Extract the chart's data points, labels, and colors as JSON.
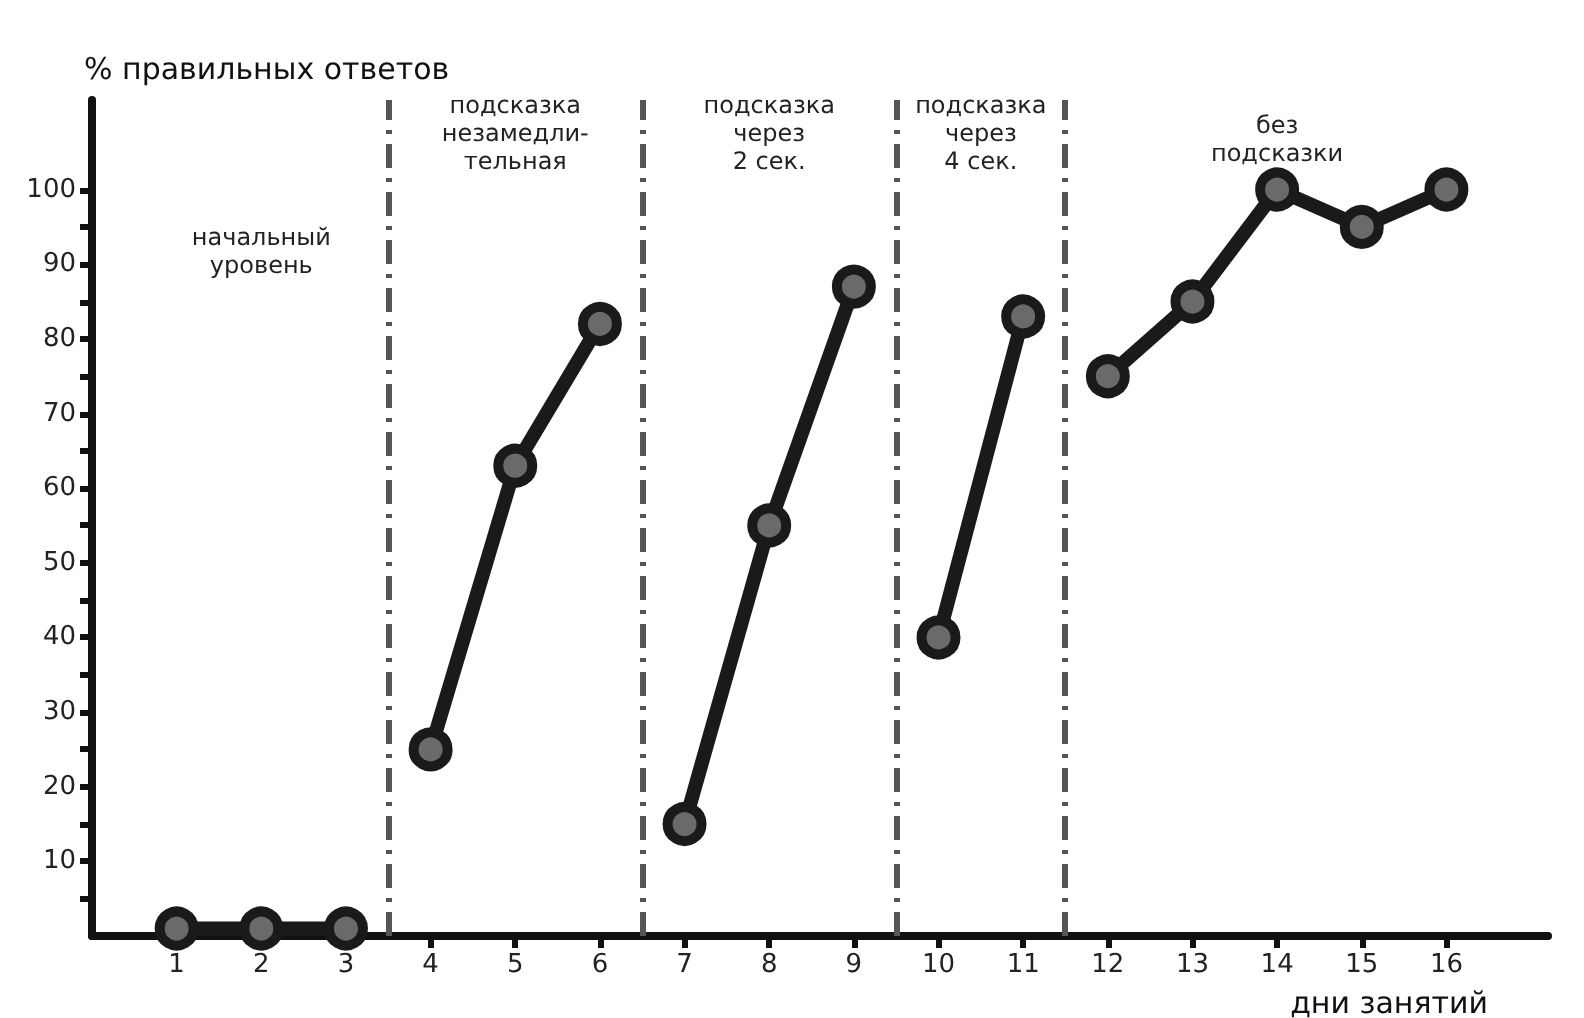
{
  "chart_data": {
    "type": "line",
    "ylabel": "% правильных ответов",
    "xlabel": "дни занятий",
    "xlim": [
      0,
      17.2
    ],
    "xticks": [
      1,
      2,
      3,
      4,
      5,
      6,
      7,
      8,
      9,
      10,
      11,
      12,
      13,
      14,
      15,
      16
    ],
    "ylim": [
      0,
      112
    ],
    "yticks": [
      {
        "value": 5,
        "label": null
      },
      10,
      {
        "value": 15,
        "label": null
      },
      20,
      {
        "value": 25,
        "label": null
      },
      30,
      {
        "value": 35,
        "label": null
      },
      40,
      {
        "value": 45,
        "label": null
      },
      50,
      {
        "value": 55,
        "label": null
      },
      60,
      {
        "value": 65,
        "label": null
      },
      70,
      {
        "value": 75,
        "label": null
      },
      80,
      {
        "value": 85,
        "label": null
      },
      90,
      {
        "value": 95,
        "label": null
      },
      100
    ],
    "series": [
      {
        "color": "#1a1a1a",
        "x": [
          1,
          2,
          3
        ],
        "values": [
          1,
          1,
          1
        ]
      },
      {
        "color": "#1a1a1a",
        "x": [
          4,
          5,
          6
        ],
        "values": [
          25,
          63,
          82
        ]
      },
      {
        "color": "#1a1a1a",
        "x": [
          7,
          8,
          9
        ],
        "values": [
          15,
          55,
          87
        ]
      },
      {
        "color": "#1a1a1a",
        "x": [
          10,
          11
        ],
        "values": [
          40,
          83
        ]
      },
      {
        "color": "#1a1a1a",
        "x": [
          12,
          13,
          14,
          15,
          16
        ],
        "values": [
          75,
          85,
          100,
          95,
          100
        ]
      }
    ],
    "marker": "circle",
    "line_style": "solid",
    "grid": false,
    "ref_lines": [
      {
        "axis": "x",
        "value": 3.5,
        "color": "#555555",
        "line_style": "dashed"
      },
      {
        "axis": "x",
        "value": 6.5,
        "color": "#555555",
        "line_style": "dashed"
      },
      {
        "axis": "x",
        "value": 9.5,
        "color": "#555555",
        "line_style": "dashed"
      },
      {
        "axis": "x",
        "value": 11.5,
        "color": "#555555",
        "line_style": "dashed"
      }
    ],
    "annotations": [
      "начальный\nуровень",
      "подсказка\nнезамедли-\nтельная",
      "подсказка\nчерез\n2 сек.",
      "подсказка\nчерез\n4 сек.",
      "без\nподсказки"
    ]
  }
}
